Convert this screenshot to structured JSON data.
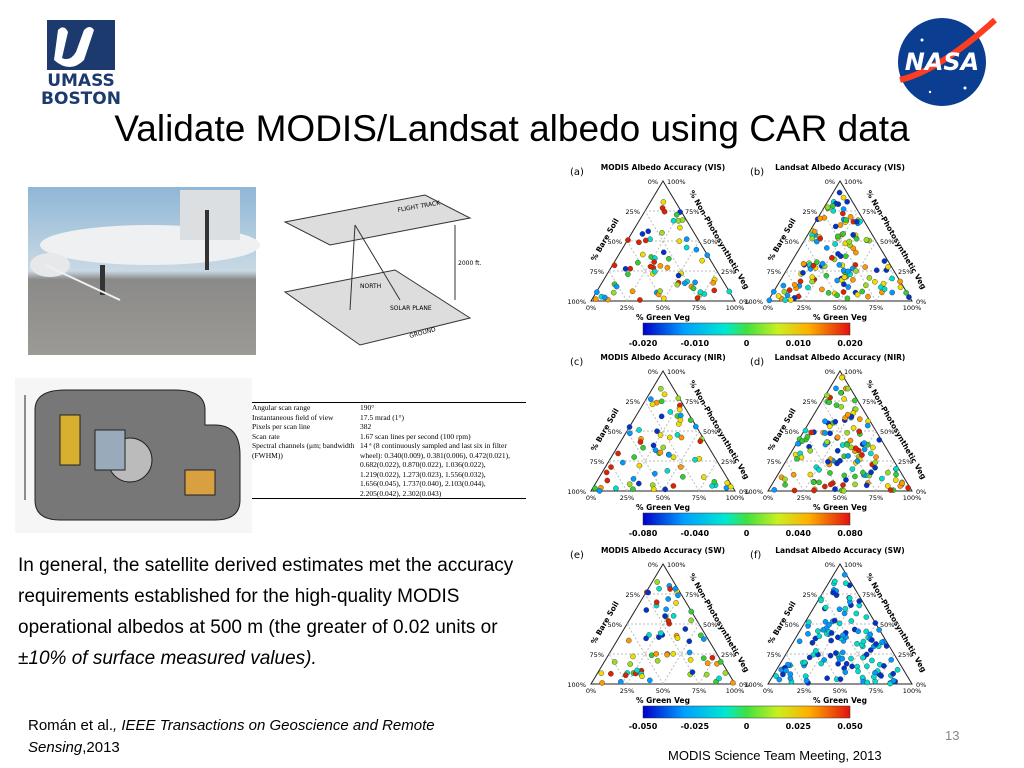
{
  "logos": {
    "umass": [
      "UMASS",
      "BOSTON"
    ],
    "nasa": "NASA"
  },
  "title": "Validate MODIS/Landsat albedo using CAR data",
  "flight_diagram": {
    "track": "FLIGHT TRACK",
    "north": "NORTH",
    "solar": "SOLAR PLANE",
    "ground": "GROUND",
    "altitude": "2000 ft."
  },
  "instrument_table": {
    "rows": [
      [
        "Angular scan range",
        [
          "190°"
        ]
      ],
      [
        "Instantaneous field of view",
        [
          "17.5 mrad (1°)"
        ]
      ],
      [
        "Pixels per scan line",
        [
          "382"
        ]
      ],
      [
        "Scan rate",
        [
          "1.67 scan lines per second (100 rpm)"
        ]
      ],
      [
        "Spectral channels (μm; bandwidth (FWHM))",
        [
          "14 ª (8 continuously sampled and last six in filter",
          "wheel): 0.340(0.009), 0.381(0.006), 0.472(0.021),",
          "0.682(0.022), 0.870(0.022), 1.036(0.022),",
          "1.219(0.022), 1.273(0.023), 1.556(0.032),",
          "1.656(0.045), 1.737(0.040), 2.103(0.044),",
          "2.205(0.042), 2.302(0.043)"
        ]
      ]
    ]
  },
  "body": {
    "text": "In general, the satellite derived estimates met the accuracy requirements established for the high-quality MODIS operational albedos at 500 m (the greater of 0.02 units or ",
    "emphasis": "±10% of surface measured values)."
  },
  "citation": {
    "authors": "Román et al.",
    "journal": ", IEEE Transactions on Geoscience and Remote Sensing",
    "year": ",2013"
  },
  "panels": [
    {
      "letter": "(a)",
      "title": "MODIS Albedo Accuracy (VIS)"
    },
    {
      "letter": "(b)",
      "title": "Landsat Albedo Accuracy (VIS)"
    },
    {
      "letter": "(c)",
      "title": "MODIS Albedo Accuracy (NIR)"
    },
    {
      "letter": "(d)",
      "title": "Landsat Albedo Accuracy (NIR)"
    },
    {
      "letter": "(e)",
      "title": "MODIS Albedo Accuracy (SW)"
    },
    {
      "letter": "(f)",
      "title": "Landsat Albedo Accuracy (SW)"
    }
  ],
  "ternary_axes": {
    "left": "% Bare Soil",
    "right": "% Non-Photosynthetic Veg",
    "bottom": "% Green Veg",
    "ticks": [
      "0%",
      "25%",
      "50%",
      "75%",
      "100%"
    ]
  },
  "colorbars": [
    [
      "-0.020",
      "-0.010",
      "0",
      "0.010",
      "0.020"
    ],
    [
      "-0.080",
      "-0.040",
      "0",
      "0.040",
      "0.080"
    ],
    [
      "-0.050",
      "-0.025",
      "0",
      "0.025",
      "0.050"
    ]
  ],
  "footer": "MODIS Science Team Meeting, 2013",
  "page_number": "13"
}
